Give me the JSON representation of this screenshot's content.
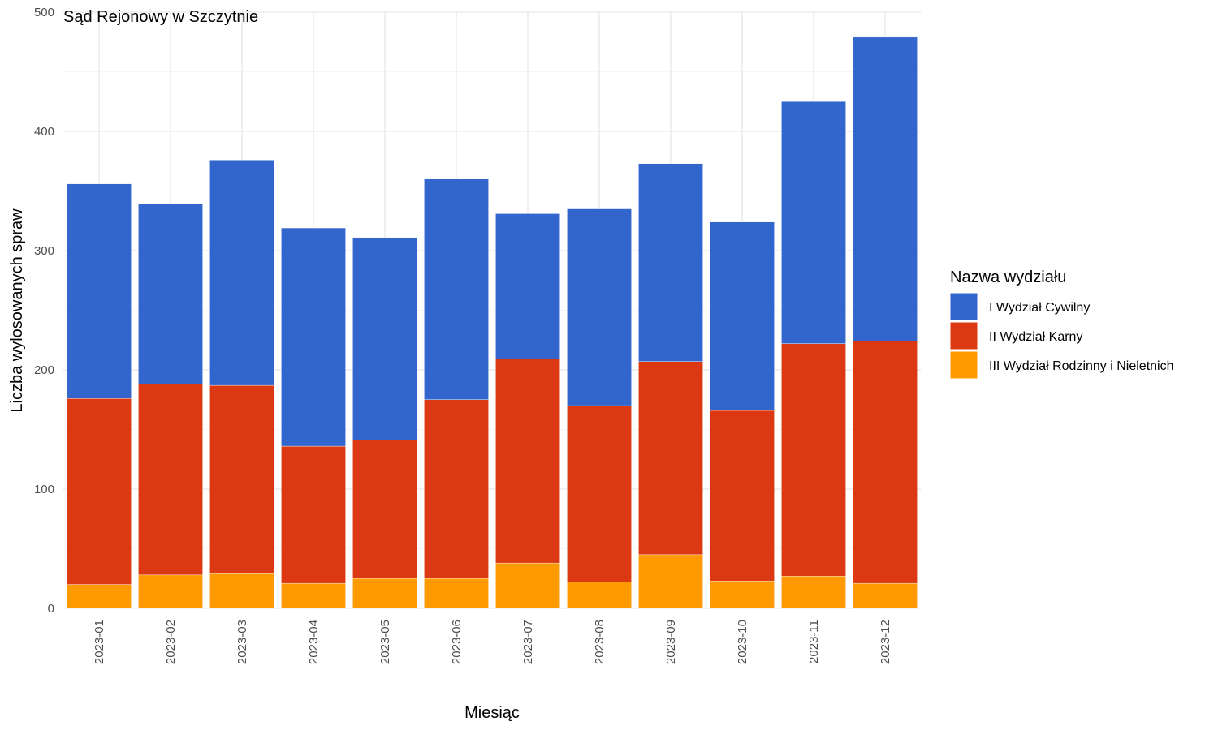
{
  "chart_data": {
    "type": "bar",
    "stacked": true,
    "title": "Sąd Rejonowy w Szczytnie",
    "xlabel": "Miesiąc",
    "ylabel": "Liczba wylosowanych spraw",
    "ylim": [
      0,
      500
    ],
    "yticks": [
      0,
      100,
      200,
      300,
      400,
      500
    ],
    "grid": true,
    "legend_position": "right",
    "legend_title": "Nazwa wydziału",
    "categories": [
      "2023-01",
      "2023-02",
      "2023-03",
      "2023-04",
      "2023-05",
      "2023-06",
      "2023-07",
      "2023-08",
      "2023-09",
      "2023-10",
      "2023-11",
      "2023-12"
    ],
    "series": [
      {
        "name": "III Wydział Rodzinny i Nieletnich",
        "color": "#FF9900",
        "values": [
          20,
          28,
          29,
          21,
          25,
          25,
          38,
          22,
          45,
          23,
          27,
          21
        ]
      },
      {
        "name": "II Wydział Karny",
        "color": "#DC3912",
        "values": [
          156,
          160,
          158,
          115,
          116,
          150,
          171,
          148,
          162,
          143,
          195,
          203
        ]
      },
      {
        "name": "I Wydział Cywilny",
        "color": "#3366CC",
        "values": [
          180,
          151,
          189,
          183,
          170,
          185,
          122,
          165,
          166,
          158,
          203,
          255
        ]
      }
    ],
    "legend_order": [
      "I Wydział Cywilny",
      "II Wydział Karny",
      "III Wydział Rodzinny i Nieletnich"
    ]
  }
}
